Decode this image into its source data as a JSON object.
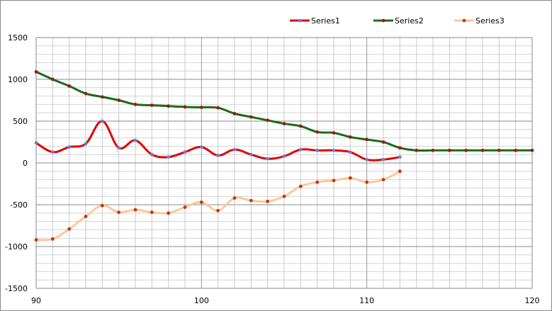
{
  "chart_data": {
    "type": "line",
    "title": "",
    "xlabel": "",
    "ylabel": "",
    "xlim": [
      90,
      120
    ],
    "ylim": [
      -1500,
      1500
    ],
    "x_ticks": [
      90,
      100,
      110,
      120
    ],
    "y_ticks": [
      -1500,
      -1000,
      -500,
      0,
      500,
      1000,
      1500
    ],
    "grid": {
      "major_y_step": 500,
      "minor_y_step": 100,
      "x_step": 1
    },
    "legend": {
      "position": "top-right"
    },
    "series": [
      {
        "name": "Series1",
        "color": "#e00000",
        "marker_color": "#6b7fd0",
        "width": 3,
        "x": [
          90,
          91,
          92,
          93,
          94,
          95,
          96,
          97,
          98,
          99,
          100,
          101,
          102,
          103,
          104,
          105,
          106,
          107,
          108,
          109,
          110,
          111,
          112
        ],
        "values": [
          240,
          130,
          190,
          230,
          500,
          180,
          270,
          100,
          70,
          130,
          190,
          90,
          160,
          100,
          50,
          80,
          160,
          150,
          150,
          130,
          40,
          40,
          70
        ]
      },
      {
        "name": "Series2",
        "color": "#1a6b1a",
        "marker_color": "#9b1a1a",
        "width": 3,
        "x": [
          90,
          91,
          92,
          93,
          94,
          95,
          96,
          97,
          98,
          99,
          100,
          101,
          102,
          103,
          104,
          105,
          106,
          107,
          108,
          109,
          110,
          111,
          112,
          113,
          114,
          115,
          116,
          117,
          118,
          119,
          120
        ],
        "values": [
          1090,
          1000,
          920,
          830,
          790,
          750,
          700,
          690,
          680,
          670,
          665,
          660,
          590,
          550,
          510,
          470,
          440,
          370,
          360,
          310,
          280,
          250,
          180,
          150,
          150,
          150,
          150,
          150,
          150,
          150,
          150
        ]
      },
      {
        "name": "Series3",
        "color": "#f8c9a0",
        "marker_color": "#cc3300",
        "width": 3,
        "x": [
          90,
          91,
          92,
          93,
          94,
          95,
          96,
          97,
          98,
          99,
          100,
          101,
          102,
          103,
          104,
          105,
          106,
          107,
          108,
          109,
          110,
          111,
          112
        ],
        "values": [
          -920,
          -910,
          -790,
          -640,
          -510,
          -590,
          -560,
          -590,
          -600,
          -530,
          -470,
          -570,
          -420,
          -450,
          -460,
          -400,
          -280,
          -230,
          -210,
          -180,
          -230,
          -200,
          -100
        ]
      }
    ]
  }
}
